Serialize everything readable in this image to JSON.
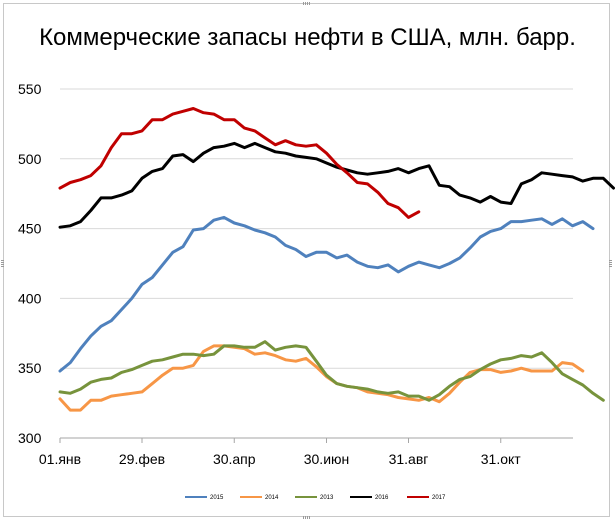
{
  "chart_data": {
    "type": "line",
    "title": "Коммерческие запасы нефти в США, млн. барр.",
    "xlabel": "",
    "ylabel": "",
    "ylim": [
      300,
      550
    ],
    "yticks": [
      300,
      350,
      400,
      450,
      500,
      550
    ],
    "xlim": [
      1,
      52
    ],
    "xtick_positions": [
      1,
      9,
      18,
      27,
      35,
      44
    ],
    "xtick_labels": [
      "01.янв",
      "29.фев",
      "30.апр",
      "30.июн",
      "31.авг",
      "31.окт"
    ],
    "grid": true,
    "legend_position": "bottom",
    "series": [
      {
        "name": "2015",
        "color": "#4f81bd",
        "values": [
          348,
          354,
          364,
          373,
          380,
          384,
          392,
          400,
          410,
          415,
          424,
          433,
          437,
          449,
          450,
          456,
          458,
          454,
          452,
          449,
          447,
          444,
          438,
          435,
          430,
          433,
          433,
          429,
          431,
          426,
          423,
          422,
          424,
          419,
          423,
          426,
          424,
          422,
          425,
          429,
          436,
          444,
          448,
          450,
          455,
          455,
          456,
          457,
          453,
          457,
          452,
          455,
          450
        ]
      },
      {
        "name": "2014",
        "color": "#f79646",
        "values": [
          328,
          320,
          320,
          327,
          327,
          330,
          331,
          332,
          333,
          339,
          345,
          350,
          350,
          352,
          362,
          366,
          366,
          365,
          364,
          360,
          361,
          359,
          356,
          355,
          357,
          351,
          344,
          339,
          337,
          336,
          333,
          332,
          331,
          329,
          328,
          327,
          329,
          326,
          332,
          340,
          347,
          349,
          349,
          347,
          348,
          350,
          348,
          348,
          348,
          354,
          353,
          348
        ]
      },
      {
        "name": "2013",
        "color": "#77933c",
        "values": [
          333,
          332,
          335,
          340,
          342,
          343,
          347,
          349,
          352,
          355,
          356,
          358,
          360,
          360,
          359,
          360,
          366,
          366,
          365,
          365,
          369,
          363,
          365,
          366,
          365,
          355,
          345,
          339,
          337,
          336,
          335,
          333,
          332,
          333,
          330,
          330,
          327,
          331,
          337,
          342,
          344,
          349,
          353,
          356,
          357,
          359,
          358,
          361,
          354,
          346,
          342,
          338,
          332,
          327
        ]
      },
      {
        "name": "2016",
        "color": "#000000",
        "values": [
          451,
          452,
          455,
          463,
          472,
          472,
          474,
          477,
          486,
          491,
          493,
          502,
          503,
          498,
          504,
          508,
          509,
          511,
          508,
          511,
          508,
          505,
          504,
          502,
          501,
          500,
          497,
          494,
          492,
          490,
          489,
          490,
          491,
          493,
          490,
          493,
          495,
          481,
          480,
          474,
          472,
          469,
          473,
          469,
          468,
          482,
          485,
          490,
          489,
          488,
          487,
          484,
          486,
          486,
          479
        ]
      },
      {
        "name": "2017",
        "color": "#c00000",
        "values": [
          479,
          483,
          485,
          488,
          495,
          508,
          518,
          518,
          520,
          528,
          528,
          532,
          534,
          536,
          533,
          532,
          528,
          528,
          522,
          520,
          515,
          510,
          513,
          510,
          509,
          510,
          504,
          496,
          490,
          483,
          482,
          476,
          468,
          465,
          458,
          462
        ]
      }
    ]
  }
}
